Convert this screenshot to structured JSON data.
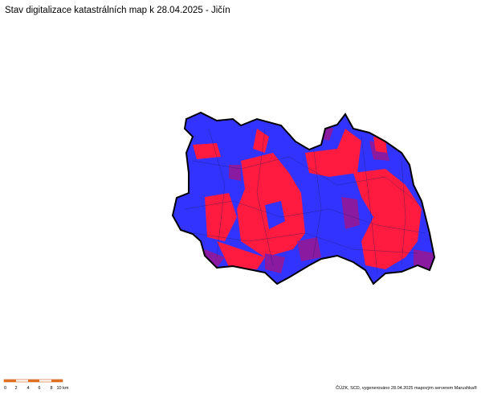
{
  "header": {
    "title": "Stav digitalizace katastrálních map k 28.04.2025 - Jičín"
  },
  "scale_bar": {
    "labels": [
      "0",
      "2",
      "4",
      "6",
      "8",
      "10 km"
    ]
  },
  "footer": {
    "credit": "ČÚZK, SCD, vygenerováno 28.04.2025 mapovým serverem Marushka®"
  }
}
